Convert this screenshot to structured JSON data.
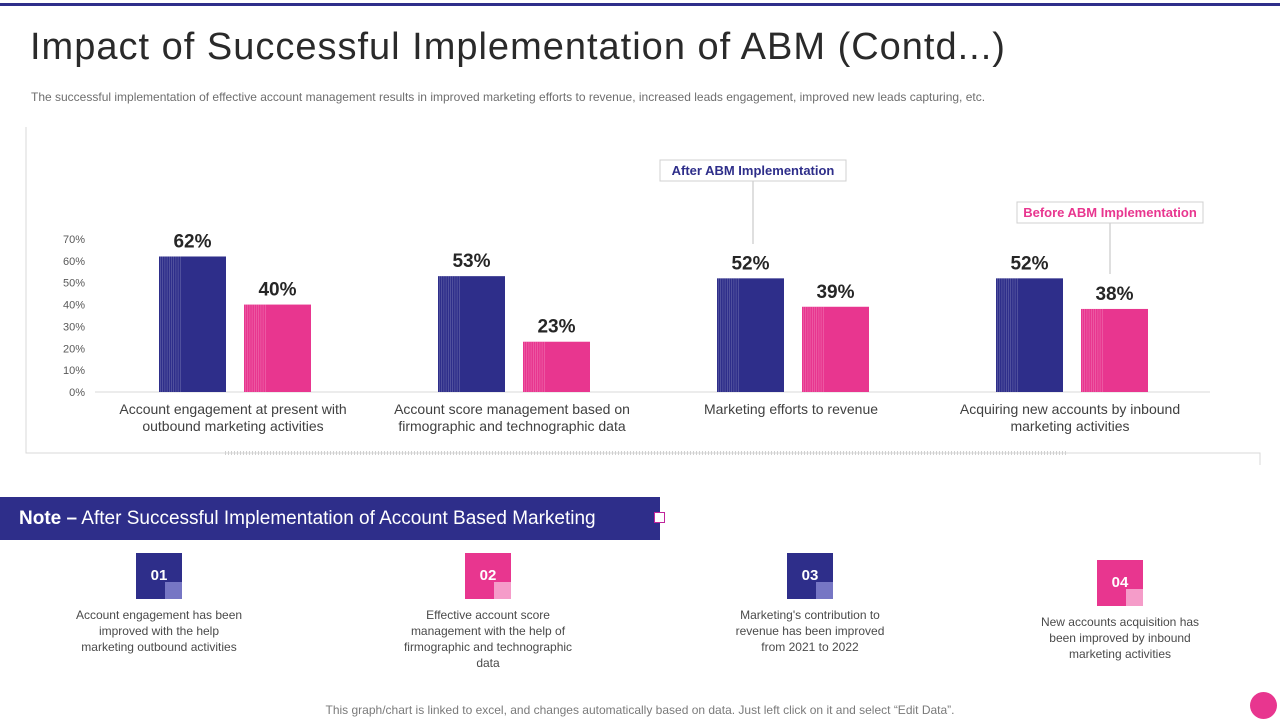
{
  "title": "Impact of Successful Implementation of ABM (Contd...)",
  "subtitle": "The successful implementation of effective  account management  results in improved  marketing efforts to revenue,  increased leads engagement,  improved  new leads capturing, etc.",
  "colors": {
    "after": "#2e2e8a",
    "before": "#e8368f",
    "accent": "#c0249b"
  },
  "chart_data": {
    "type": "bar",
    "categories": [
      [
        "Account engagement at present with",
        "outbound marketing activities"
      ],
      [
        "Account score management based on",
        "firmographic and technographic data"
      ],
      [
        "Marketing efforts to revenue"
      ],
      [
        "Acquiring new accounts by inbound",
        "marketing activities"
      ]
    ],
    "series": [
      {
        "name": "After  ABM Implementation",
        "values": [
          62,
          53,
          52,
          52
        ],
        "labels": [
          "62%",
          "53%",
          "52%",
          "52%"
        ]
      },
      {
        "name": "Before ABM Implementation",
        "values": [
          40,
          23,
          39,
          38
        ],
        "labels": [
          "40%",
          "23%",
          "39%",
          "38%"
        ]
      }
    ],
    "yticks": [
      "0%",
      "10%",
      "20%",
      "30%",
      "40%",
      "50%",
      "60%",
      "70%"
    ],
    "ylim": [
      0,
      70
    ],
    "ylabel": "",
    "xlabel": "",
    "grid": false
  },
  "note": {
    "prefix": "Note –",
    "text": " After Successful Implementation of Account Based Marketing"
  },
  "steps": [
    {
      "num": "01",
      "text": "Account engagement has been improved  with the help marketing outbound activities"
    },
    {
      "num": "02",
      "text": "Effective account score management  with the help of firmographic  and technographic data"
    },
    {
      "num": "03",
      "text": "Marketing's contribution to revenue has been improved from 2021 to 2022"
    },
    {
      "num": "04",
      "text": "New accounts acquisition has been improved  by inbound marketing activities"
    }
  ],
  "footer": "This graph/chart is linked to excel, and changes automatically based on data. Just left click on it and select “Edit Data”."
}
